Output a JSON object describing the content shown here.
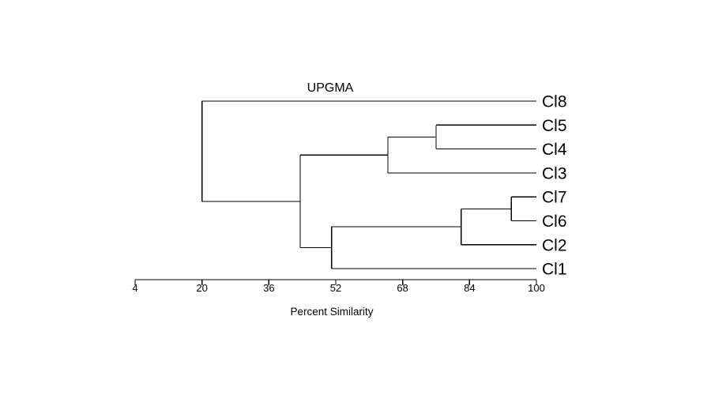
{
  "chart_data": {
    "type": "dendrogram",
    "title": "UPGMA",
    "xlabel": "Percent Similarity",
    "xlim": [
      4,
      100
    ],
    "xticks": [
      4,
      20,
      36,
      52,
      68,
      84,
      100
    ],
    "leaves": [
      "Cl8",
      "Cl5",
      "Cl4",
      "Cl3",
      "Cl7",
      "Cl6",
      "Cl2",
      "Cl1"
    ],
    "merges": [
      {
        "id": "n1",
        "children": [
          "Cl7",
          "Cl6"
        ],
        "similarity": 94
      },
      {
        "id": "n2",
        "children": [
          "Cl5",
          "Cl4"
        ],
        "similarity": 76
      },
      {
        "id": "n3",
        "children": [
          "n1",
          "Cl2"
        ],
        "similarity": 82
      },
      {
        "id": "n4",
        "children": [
          "n2",
          "Cl3"
        ],
        "similarity": 64.5
      },
      {
        "id": "n5",
        "children": [
          "n3",
          "Cl1"
        ],
        "similarity": 51
      },
      {
        "id": "n6",
        "children": [
          "n4",
          "n5"
        ],
        "similarity": 43.5
      },
      {
        "id": "n7",
        "children": [
          "Cl8",
          "n6"
        ],
        "similarity": 20
      }
    ]
  }
}
